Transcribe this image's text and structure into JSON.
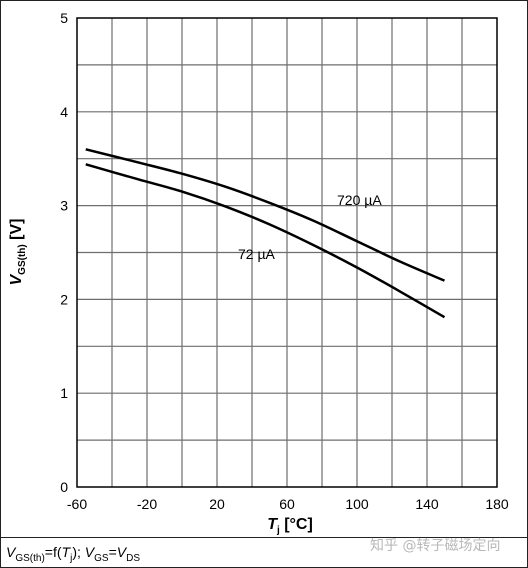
{
  "chart_data": {
    "type": "line",
    "title": "",
    "xlabel": "Tj [°C]",
    "xlabel_main": "T",
    "xlabel_sub": "j",
    "xlabel_unit": " [°C]",
    "ylabel": "VGS(th) [V]",
    "ylabel_main": "V",
    "ylabel_sub": "GS(th)",
    "ylabel_unit": " [V]",
    "xlim": [
      -60,
      180
    ],
    "ylim": [
      0,
      5
    ],
    "xticks": [
      "-60",
      "-20",
      "20",
      "60",
      "100",
      "140",
      "180"
    ],
    "yticks": [
      "0",
      "1",
      "2",
      "3",
      "4",
      "5"
    ],
    "grid": true,
    "series": [
      {
        "name": "720 µA",
        "x": [
          -55,
          -25,
          0,
          25,
          50,
          75,
          100,
          125,
          150
        ],
        "y": [
          3.6,
          3.46,
          3.34,
          3.2,
          3.03,
          2.84,
          2.62,
          2.4,
          2.2
        ]
      },
      {
        "name": "72 µA",
        "x": [
          -55,
          -25,
          0,
          25,
          50,
          75,
          100,
          125,
          150
        ],
        "y": [
          3.44,
          3.28,
          3.15,
          2.99,
          2.8,
          2.58,
          2.34,
          2.08,
          1.81
        ]
      }
    ]
  },
  "caption": {
    "v1": "V",
    "v1_sub": "GS(th)",
    "eq1": "=f(",
    "t": "T",
    "t_sub": "j",
    "eq1_end": "); ",
    "v2": "V",
    "v2_sub": "GS",
    "eq2": "=",
    "v3": "V",
    "v3_sub": "DS"
  },
  "watermark": "知乎 @转子磁场定向"
}
